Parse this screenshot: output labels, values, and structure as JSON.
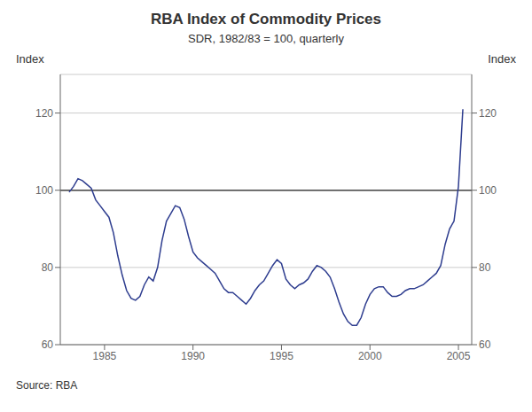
{
  "chart_data": {
    "type": "line",
    "title": "RBA Index of Commodity Prices",
    "subtitle": "SDR, 1982/83 = 100, quarterly",
    "ylabel": "Index",
    "y2label": "Index",
    "source": "Source: RBA",
    "color": "#2e3d8f",
    "reference_line": {
      "value": 100,
      "color": "#444444"
    },
    "grid": true,
    "xlim": [
      1982.5,
      2005.75
    ],
    "xticks": [
      1985,
      1990,
      1995,
      2000,
      2005
    ],
    "ylim": [
      60,
      130
    ],
    "yticks": [
      60,
      80,
      100,
      120
    ],
    "y2lim": [
      60,
      130
    ],
    "y2ticks": [
      60,
      80,
      100,
      120
    ],
    "x": [
      1983.0,
      1983.25,
      1983.5,
      1983.75,
      1984.0,
      1984.25,
      1984.5,
      1984.75,
      1985.0,
      1985.25,
      1985.5,
      1985.75,
      1986.0,
      1986.25,
      1986.5,
      1986.75,
      1987.0,
      1987.25,
      1987.5,
      1987.75,
      1988.0,
      1988.25,
      1988.5,
      1988.75,
      1989.0,
      1989.25,
      1989.5,
      1989.75,
      1990.0,
      1990.25,
      1990.5,
      1990.75,
      1991.0,
      1991.25,
      1991.5,
      1991.75,
      1992.0,
      1992.25,
      1992.5,
      1992.75,
      1993.0,
      1993.25,
      1993.5,
      1993.75,
      1994.0,
      1994.25,
      1994.5,
      1994.75,
      1995.0,
      1995.25,
      1995.5,
      1995.75,
      1996.0,
      1996.25,
      1996.5,
      1996.75,
      1997.0,
      1997.25,
      1997.5,
      1997.75,
      1998.0,
      1998.25,
      1998.5,
      1998.75,
      1999.0,
      1999.25,
      1999.5,
      1999.75,
      2000.0,
      2000.25,
      2000.5,
      2000.75,
      2001.0,
      2001.25,
      2001.5,
      2001.75,
      2002.0,
      2002.25,
      2002.5,
      2002.75,
      2003.0,
      2003.25,
      2003.5,
      2003.75,
      2004.0,
      2004.25,
      2004.5,
      2004.75,
      2005.0,
      2005.25
    ],
    "values": [
      99.5,
      101.0,
      103.0,
      102.5,
      101.5,
      100.5,
      97.5,
      96.0,
      94.5,
      93.0,
      89.0,
      83.0,
      78.0,
      74.0,
      72.0,
      71.5,
      72.5,
      75.5,
      77.5,
      76.5,
      80.0,
      87.0,
      92.0,
      94.0,
      96.0,
      95.5,
      92.5,
      88.0,
      84.0,
      82.5,
      81.5,
      80.5,
      79.5,
      78.5,
      76.5,
      74.5,
      73.5,
      73.5,
      72.5,
      71.5,
      70.5,
      72.0,
      74.0,
      75.5,
      76.5,
      78.5,
      80.5,
      82.0,
      81.0,
      77.0,
      75.5,
      74.5,
      75.5,
      76.0,
      77.0,
      79.0,
      80.5,
      80.0,
      79.0,
      77.5,
      74.5,
      71.0,
      68.0,
      66.0,
      65.0,
      65.0,
      67.0,
      70.5,
      73.0,
      74.5,
      75.0,
      75.0,
      73.5,
      72.5,
      72.5,
      73.0,
      74.0,
      74.5,
      74.5,
      75.0,
      75.5,
      76.5,
      77.5,
      78.5,
      80.5,
      86.0,
      90.0,
      92.0,
      101.0,
      121.0
    ]
  }
}
